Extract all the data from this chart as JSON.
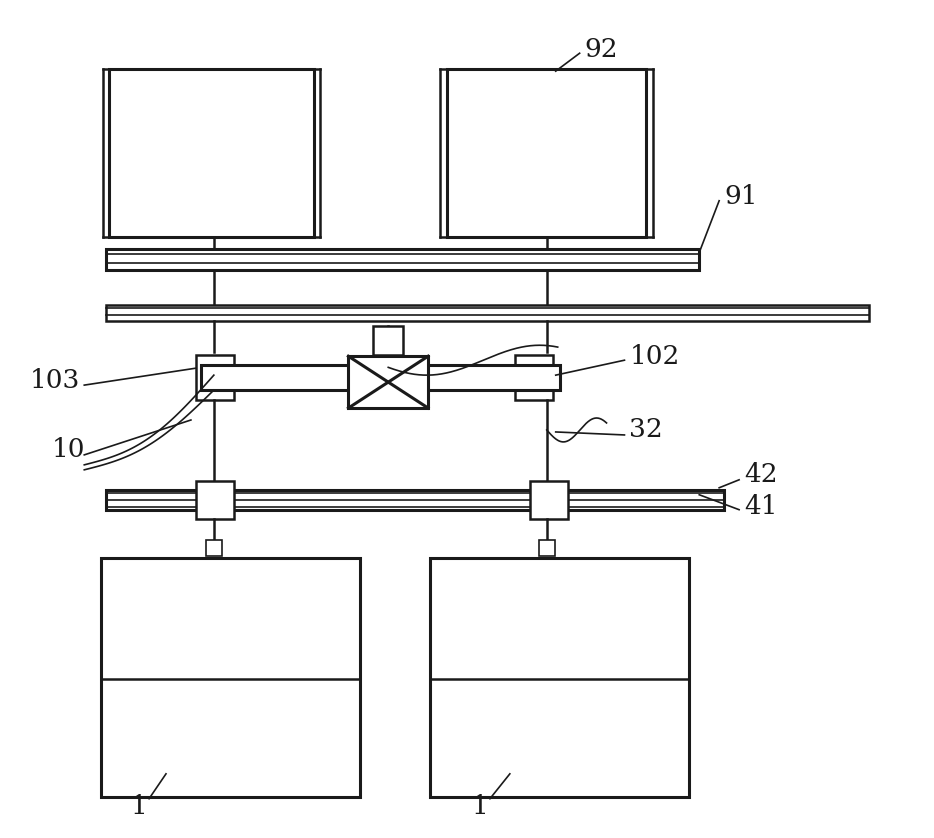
{
  "bg_color": "#ffffff",
  "lc": "#1a1a1a",
  "lw": 2.2,
  "lw_med": 1.8,
  "lw_thin": 1.2,
  "fontsize": 19,
  "figsize": [
    9.34,
    8.38
  ],
  "dpi": 100
}
